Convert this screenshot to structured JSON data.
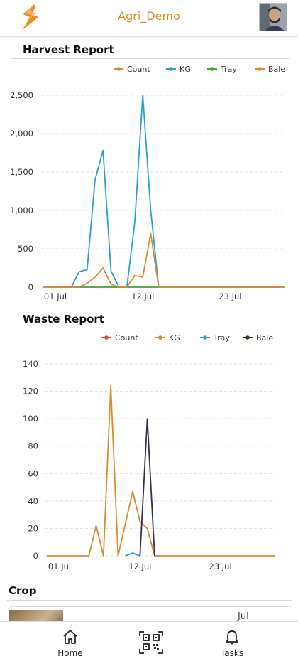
{
  "app": {
    "title": "Agri_Demo"
  },
  "harvest": {
    "title": "Harvest Report",
    "chart_data": {
      "type": "line",
      "x": [
        "01 Jul",
        "12 Jul",
        "23 Jul"
      ],
      "xticks": [
        "01 Jul",
        "12 Jul",
        "23 Jul"
      ],
      "yticks": [
        "0",
        "500",
        "1,000",
        "1,500",
        "2,000",
        "2,500"
      ],
      "ylim": [
        0,
        2500
      ],
      "legend": "top-right",
      "series": [
        {
          "name": "Count",
          "color": "#d98a2b",
          "points": []
        },
        {
          "name": "KG",
          "color": "#2a9fd0",
          "points": [
            [
              -2,
              0
            ],
            [
              1,
              0
            ],
            [
              2,
              0
            ],
            [
              3,
              200
            ],
            [
              4,
              230
            ],
            [
              5,
              1400
            ],
            [
              6,
              1780
            ],
            [
              7,
              210
            ],
            [
              8,
              0
            ],
            [
              9,
              0
            ],
            [
              10,
              850
            ],
            [
              11,
              2500
            ],
            [
              12,
              1000
            ],
            [
              13,
              0
            ],
            [
              30,
              0
            ]
          ]
        },
        {
          "name": "Tray",
          "color": "#3ca62f",
          "points": [
            [
              1,
              0
            ],
            [
              13,
              0
            ]
          ]
        },
        {
          "name": "Bale",
          "color": "#d98a2b",
          "points": [
            [
              -2,
              0
            ],
            [
              3,
              0
            ],
            [
              4,
              50
            ],
            [
              5,
              130
            ],
            [
              6,
              250
            ],
            [
              7,
              40
            ],
            [
              8,
              0
            ],
            [
              9,
              0
            ],
            [
              10,
              150
            ],
            [
              11,
              130
            ],
            [
              12,
              700
            ],
            [
              13,
              0
            ],
            [
              30,
              0
            ]
          ]
        }
      ]
    }
  },
  "waste": {
    "title": "Waste Report",
    "chart_data": {
      "type": "line",
      "x": [
        "01 Jul",
        "12 Jul",
        "23 Jul"
      ],
      "xticks": [
        "01 Jul",
        "12 Jul",
        "23 Jul"
      ],
      "yticks": [
        "0",
        "20",
        "40",
        "60",
        "80",
        "100",
        "120",
        "140"
      ],
      "ylim": [
        0,
        140
      ],
      "legend": "top-right",
      "series": [
        {
          "name": "Count",
          "color": "#e0452e",
          "points": []
        },
        {
          "name": "KG",
          "color": "#d98a2b",
          "points": [
            [
              -2,
              0
            ],
            [
              4,
              0
            ],
            [
              5,
              22
            ],
            [
              6,
              0
            ],
            [
              7,
              124
            ],
            [
              8,
              0
            ],
            [
              10,
              47
            ],
            [
              11,
              25
            ],
            [
              12,
              20
            ],
            [
              13,
              0
            ],
            [
              30,
              0
            ]
          ]
        },
        {
          "name": "Tray",
          "color": "#2a9fd0",
          "points": [
            [
              9,
              0
            ],
            [
              10,
              2
            ],
            [
              11,
              0
            ]
          ]
        },
        {
          "name": "Bale",
          "color": "#2f3446",
          "points": [
            [
              11,
              0
            ],
            [
              12,
              100
            ],
            [
              13,
              0
            ]
          ]
        }
      ]
    }
  },
  "crop": {
    "title": "Crop",
    "date": "Jul"
  },
  "nav": {
    "home": "Home",
    "tasks": "Tasks"
  }
}
